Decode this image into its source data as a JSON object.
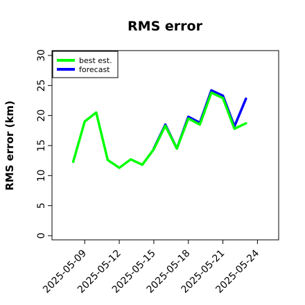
{
  "chart_data": {
    "type": "line",
    "title": "RMS error",
    "xlabel": "",
    "ylabel": "RMS error (km)",
    "ylim": [
      0,
      32
    ],
    "yticks": [
      0,
      5,
      10,
      15,
      20,
      25,
      30
    ],
    "xlim": [
      "2025-05-07",
      "2025-05-25"
    ],
    "xticks": [
      {
        "label": "2025-05-09",
        "date": "2025-05-09",
        "color": "#000000"
      },
      {
        "label": "2025-05-12",
        "date": "2025-05-12",
        "color": "#000000"
      },
      {
        "label": "2025-05-15",
        "date": "2025-05-15",
        "color": "#228b22"
      },
      {
        "label": "2025-05-18",
        "date": "2025-05-18",
        "color": "#000000"
      },
      {
        "label": "2025-05-21",
        "date": "2025-05-21",
        "color": "#000000"
      },
      {
        "label": "2025-05-24",
        "date": "2025-05-24",
        "color": "#000000"
      }
    ],
    "grid": false,
    "legend_position": "top-left",
    "series": [
      {
        "name": "forecast",
        "color": "#0000ff",
        "x": [
          "2025-05-15",
          "2025-05-16",
          "2025-05-17",
          "2025-05-18",
          "2025-05-19",
          "2025-05-20",
          "2025-05-21",
          "2025-05-22",
          "2025-05-23"
        ],
        "values": [
          14.5,
          18.5,
          14.5,
          19.8,
          18.8,
          24.2,
          23.3,
          18.2,
          22.8
        ]
      },
      {
        "name": "best est.",
        "color": "#00ff00",
        "x": [
          "2025-05-08",
          "2025-05-09",
          "2025-05-10",
          "2025-05-11",
          "2025-05-12",
          "2025-05-13",
          "2025-05-14",
          "2025-05-15",
          "2025-05-16",
          "2025-05-17",
          "2025-05-18",
          "2025-05-19",
          "2025-05-20",
          "2025-05-21",
          "2025-05-22",
          "2025-05-23"
        ],
        "values": [
          12.3,
          19.0,
          20.5,
          12.6,
          11.3,
          12.7,
          11.8,
          14.4,
          18.3,
          14.5,
          19.5,
          18.5,
          23.8,
          22.9,
          17.8,
          18.7
        ]
      }
    ],
    "legend": [
      {
        "label": "best est.",
        "color": "#00ff00"
      },
      {
        "label": "forecast",
        "color": "#0000ff"
      }
    ]
  }
}
